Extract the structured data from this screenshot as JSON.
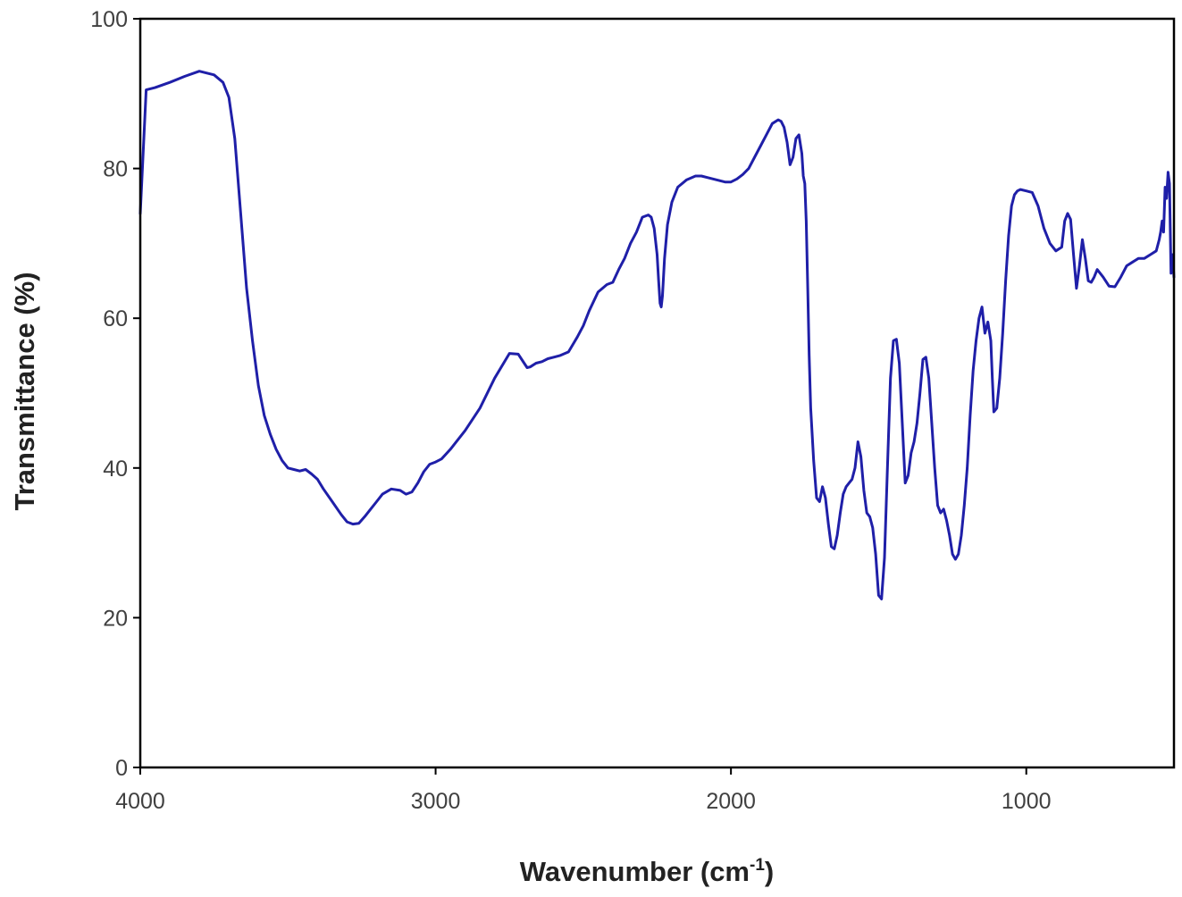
{
  "chart_data": {
    "type": "line",
    "title": "",
    "xlabel": "Wavenumber (cm",
    "xlabel_sup": "-1",
    "xlabel_close": ")",
    "ylabel": "Transmittance (%)",
    "xlim": [
      4000,
      500
    ],
    "ylim": [
      0,
      100
    ],
    "x_reversed": true,
    "x_ticks": [
      4000,
      3000,
      2000,
      1000
    ],
    "x_tick_labels": [
      "4000",
      "3000",
      "2000",
      "1000"
    ],
    "y_ticks": [
      0,
      20,
      40,
      60,
      80,
      100
    ],
    "y_tick_labels": [
      "0",
      "20",
      "40",
      "60",
      "80",
      "100"
    ],
    "grid": false,
    "legend": "none",
    "line_color": "#1f1fa8",
    "series": [
      {
        "x": [
          4000,
          3980,
          3950,
          3900,
          3850,
          3800,
          3750,
          3720,
          3700,
          3680,
          3660,
          3640,
          3620,
          3600,
          3580,
          3560,
          3540,
          3520,
          3500,
          3480,
          3460,
          3440,
          3420,
          3400,
          3380,
          3350,
          3320,
          3300,
          3280,
          3260,
          3240,
          3220,
          3200,
          3180,
          3150,
          3120,
          3100,
          3080,
          3060,
          3040,
          3020,
          3000,
          2980,
          2950,
          2900,
          2850,
          2800,
          2750,
          2720,
          2700,
          2690,
          2680,
          2660,
          2640,
          2620,
          2600,
          2580,
          2550,
          2520,
          2500,
          2480,
          2450,
          2420,
          2400,
          2380,
          2360,
          2340,
          2320,
          2300,
          2280,
          2270,
          2260,
          2250,
          2245,
          2240,
          2236,
          2232,
          2225,
          2215,
          2200,
          2180,
          2150,
          2120,
          2100,
          2080,
          2050,
          2020,
          2000,
          1980,
          1960,
          1940,
          1920,
          1900,
          1880,
          1860,
          1840,
          1830,
          1820,
          1810,
          1800,
          1790,
          1780,
          1770,
          1760,
          1755,
          1750,
          1745,
          1740,
          1735,
          1730,
          1720,
          1710,
          1700,
          1690,
          1680,
          1670,
          1660,
          1650,
          1640,
          1630,
          1620,
          1610,
          1600,
          1590,
          1580,
          1570,
          1560,
          1550,
          1540,
          1530,
          1520,
          1510,
          1500,
          1490,
          1480,
          1470,
          1460,
          1450,
          1440,
          1430,
          1420,
          1410,
          1400,
          1390,
          1380,
          1370,
          1360,
          1350,
          1340,
          1330,
          1320,
          1310,
          1300,
          1290,
          1280,
          1270,
          1260,
          1250,
          1240,
          1230,
          1220,
          1210,
          1200,
          1190,
          1180,
          1170,
          1160,
          1150,
          1140,
          1130,
          1120,
          1115,
          1110,
          1100,
          1090,
          1080,
          1070,
          1060,
          1050,
          1040,
          1030,
          1020,
          1000,
          980,
          960,
          940,
          920,
          900,
          880,
          870,
          860,
          850,
          840,
          830,
          820,
          810,
          800,
          790,
          780,
          770,
          760,
          740,
          720,
          700,
          680,
          660,
          640,
          620,
          600,
          580,
          560,
          550,
          545,
          540,
          535,
          530,
          525,
          520,
          515,
          510,
          505,
          500
        ],
        "y": [
          74,
          90.5,
          90.8,
          91.5,
          92.3,
          93,
          92.5,
          91.5,
          89.5,
          84,
          74,
          64,
          57,
          51,
          47,
          44.5,
          42.5,
          41,
          40,
          39.8,
          39.6,
          39.8,
          39.2,
          38.5,
          37.2,
          35.5,
          33.8,
          32.8,
          32.5,
          32.6,
          33.5,
          34.5,
          35.5,
          36.5,
          37.2,
          37,
          36.5,
          36.8,
          38,
          39.5,
          40.5,
          40.8,
          41.2,
          42.5,
          45,
          48,
          52,
          55.3,
          55.2,
          54,
          53.4,
          53.5,
          54,
          54.2,
          54.6,
          54.8,
          55,
          55.5,
          57.5,
          59,
          61,
          63.5,
          64.5,
          64.8,
          66.5,
          68,
          70,
          71.5,
          73.5,
          73.8,
          73.5,
          72,
          68.5,
          65,
          62,
          61.5,
          63,
          68,
          72.5,
          75.5,
          77.5,
          78.5,
          79,
          79,
          78.8,
          78.5,
          78.2,
          78.2,
          78.6,
          79.2,
          80,
          81.5,
          83,
          84.5,
          86,
          86.5,
          86.3,
          85.5,
          83.5,
          80.5,
          81.5,
          84,
          84.5,
          82,
          79,
          78,
          73,
          64,
          55,
          48,
          41,
          36,
          35.5,
          37.5,
          36,
          32.5,
          29.5,
          29.2,
          31,
          34,
          36.5,
          37.5,
          38,
          38.5,
          40,
          43.5,
          41.5,
          37,
          34,
          33.5,
          32,
          28.5,
          23,
          22.5,
          28,
          40,
          52,
          57,
          57.2,
          54,
          46,
          38,
          39,
          42,
          43.5,
          46,
          50,
          54.5,
          54.8,
          52,
          46,
          40,
          35,
          34,
          34.5,
          33,
          31,
          28.5,
          27.8,
          28.5,
          31,
          35,
          40,
          47,
          53,
          57,
          60,
          61.5,
          58,
          59.5,
          57,
          52,
          47.5,
          48,
          52,
          58,
          65,
          71,
          75,
          76.5,
          77,
          77.2,
          77,
          76.8,
          75,
          72,
          70,
          69,
          69.5,
          73,
          74,
          73.2,
          68.5,
          64,
          67,
          70.5,
          68,
          65,
          64.8,
          65.5,
          66.5,
          65.5,
          64.3,
          64.2,
          65.5,
          67,
          67.5,
          68,
          68,
          68.5,
          69,
          70.5,
          71.5,
          73,
          71.5,
          77.5,
          76,
          79.5,
          78,
          66,
          68.5,
          65.5
        ]
      }
    ]
  }
}
